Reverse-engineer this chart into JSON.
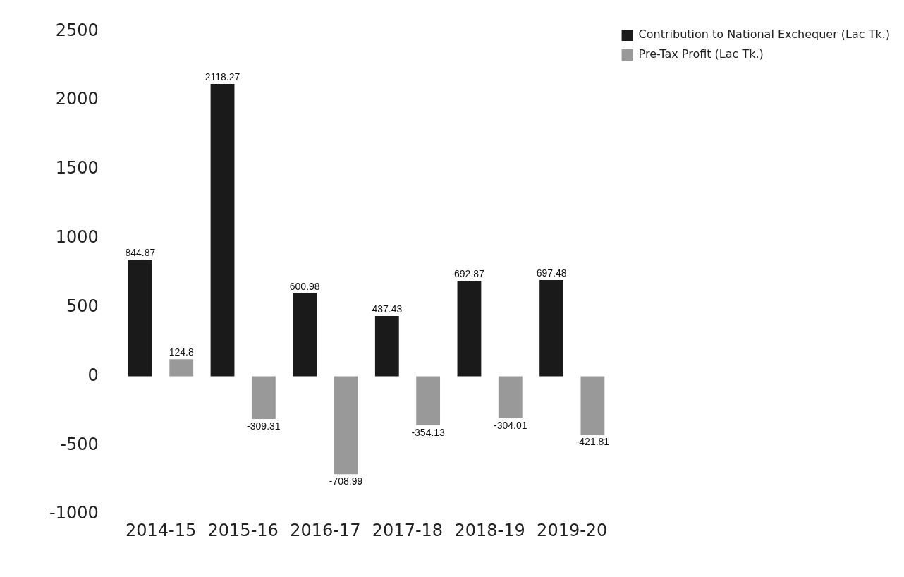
{
  "chart_data": {
    "type": "bar",
    "categories": [
      "2014-15",
      "2015-16",
      "2016-17",
      "2017-18",
      "2018-19",
      "2019-20"
    ],
    "series": [
      {
        "name": "Contribution to National Exchequer (Lac Tk.)",
        "color": "#1a1a1a",
        "values": [
          844.87,
          2118.27,
          600.98,
          437.43,
          692.87,
          697.48
        ]
      },
      {
        "name": "Pre-Tax Profit (Lac Tk.)",
        "color": "#999999",
        "values": [
          124.8,
          -309.31,
          -708.99,
          -354.13,
          -304.01,
          -421.81
        ]
      }
    ],
    "ylim": [
      -1000,
      2500
    ],
    "yticks": [
      -1000,
      -500,
      0,
      500,
      1000,
      1500,
      2000,
      2500
    ],
    "grid": false,
    "legend": "top right",
    "data_labels": true
  }
}
